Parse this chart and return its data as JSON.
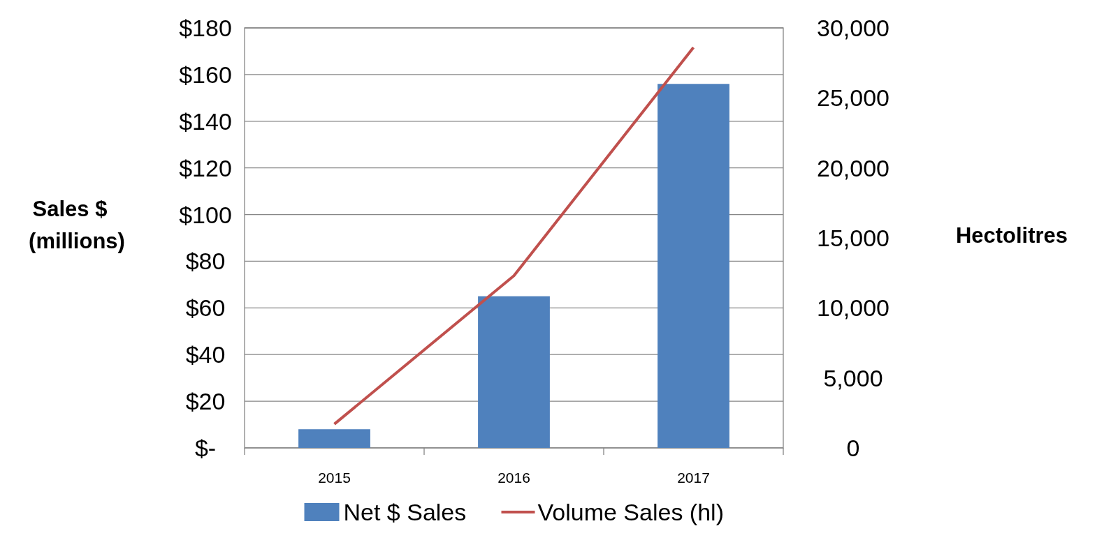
{
  "chart_data": {
    "type": "bar",
    "categories": [
      "2015",
      "2016",
      "2017"
    ],
    "ylabel": "Sales $ (millions)",
    "y2label": "Hectolitres",
    "series": [
      {
        "name": "Net $ Sales",
        "color": "#4f81bd",
        "values": [
          8,
          65,
          156
        ]
      },
      {
        "name": "Volume Sales (hl)",
        "type": "line",
        "axis": "y2",
        "color": "#c0504d",
        "values": [
          1700,
          12300,
          28600
        ]
      }
    ],
    "ylim": [
      0,
      180
    ],
    "yticks": [
      {
        "value": 0,
        "label": "$-"
      },
      {
        "value": 20,
        "label": "$20"
      },
      {
        "value": 40,
        "label": "$40"
      },
      {
        "value": 60,
        "label": "$60"
      },
      {
        "value": 80,
        "label": "$80"
      },
      {
        "value": 100,
        "label": "$100"
      },
      {
        "value": 120,
        "label": "$120"
      },
      {
        "value": 140,
        "label": "$140"
      },
      {
        "value": 160,
        "label": "$160"
      },
      {
        "value": 180,
        "label": "$180"
      }
    ],
    "y2lim": [
      0,
      30000
    ],
    "y2ticks": [
      0,
      {
        "value": 5000,
        "label": "5,000"
      },
      {
        "value": 10000,
        "label": "10,000"
      },
      {
        "value": 15000,
        "label": "15,000"
      },
      {
        "value": 20000,
        "label": "20,000"
      },
      {
        "value": 25000,
        "label": "25,000"
      },
      {
        "value": 30000,
        "label": "30,000"
      }
    ],
    "grid": "y",
    "legend": "bottom",
    "marker": "none",
    "line_style": "solid"
  }
}
